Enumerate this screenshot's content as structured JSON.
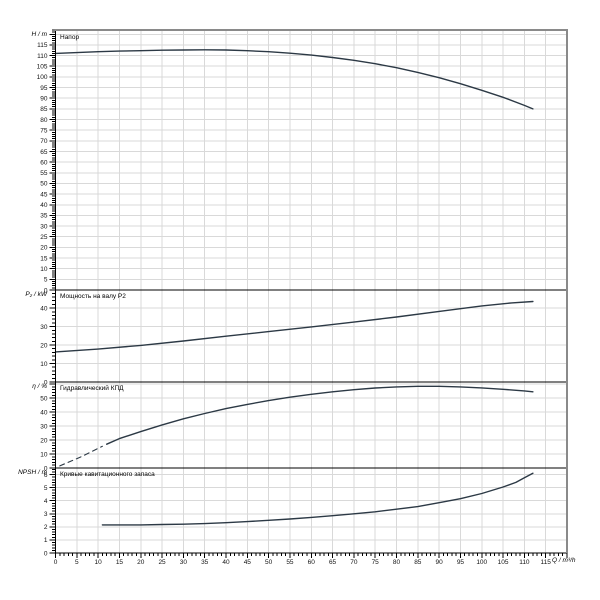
{
  "chart_data": {
    "type": "line",
    "language": "ru",
    "x_axis": {
      "label": "Q / m³/h",
      "min": 0,
      "max": 120,
      "major_tick_step": 5,
      "minor_tick_step": 1,
      "tick_labels": [
        0,
        5,
        10,
        15,
        20,
        25,
        30,
        35,
        40,
        45,
        50,
        55,
        60,
        65,
        70,
        75,
        80,
        85,
        90,
        95,
        100,
        105,
        110,
        115
      ]
    },
    "colors": {
      "curve": "#2c3945",
      "grid": "#d9d9d9",
      "frame": "#8a8a8a",
      "axis": "#000000",
      "background": "#ffffff"
    },
    "panels": [
      {
        "name": "head",
        "unit_label": "H / m",
        "header": "Напор",
        "y_min": 0,
        "y_max": 122,
        "label_step": 5,
        "minor_step": 1,
        "tick_labels": [
          0,
          5,
          10,
          15,
          20,
          25,
          30,
          35,
          40,
          45,
          50,
          55,
          60,
          65,
          70,
          75,
          80,
          85,
          90,
          95,
          100,
          105,
          110,
          115
        ],
        "series": [
          {
            "name": "head-curve",
            "style": "solid",
            "points": [
              [
                0,
                111
              ],
              [
                5,
                111.4
              ],
              [
                10,
                111.8
              ],
              [
                15,
                112.1
              ],
              [
                20,
                112.3
              ],
              [
                25,
                112.5
              ],
              [
                30,
                112.6
              ],
              [
                35,
                112.7
              ],
              [
                40,
                112.6
              ],
              [
                45,
                112.3
              ],
              [
                50,
                111.8
              ],
              [
                55,
                111.1
              ],
              [
                60,
                110.2
              ],
              [
                65,
                109.1
              ],
              [
                70,
                107.8
              ],
              [
                75,
                106.2
              ],
              [
                80,
                104.3
              ],
              [
                85,
                102.1
              ],
              [
                90,
                99.6
              ],
              [
                95,
                96.8
              ],
              [
                100,
                93.7
              ],
              [
                105,
                90.4
              ],
              [
                110,
                86.6
              ],
              [
                112,
                85
              ]
            ]
          }
        ]
      },
      {
        "name": "shaft-power",
        "unit_label": "P₂ / kW",
        "header": "Мощность на валу P2",
        "y_min": 0,
        "y_max": 49.8,
        "label_step": 10,
        "minor_step": 2,
        "tick_labels": [
          0,
          10,
          20,
          30,
          40
        ],
        "series": [
          {
            "name": "power-curve",
            "style": "solid",
            "points": [
              [
                0,
                16.3
              ],
              [
                10,
                17.8
              ],
              [
                20,
                19.8
              ],
              [
                30,
                22.2
              ],
              [
                40,
                24.8
              ],
              [
                50,
                27.3
              ],
              [
                60,
                29.8
              ],
              [
                70,
                32.4
              ],
              [
                80,
                35.2
              ],
              [
                90,
                38.2
              ],
              [
                100,
                41.2
              ],
              [
                107,
                42.8
              ],
              [
                112,
                43.6
              ]
            ]
          }
        ]
      },
      {
        "name": "efficiency",
        "unit_label": "η / %",
        "header": "Гидравлический КПД",
        "y_min": 0,
        "y_max": 61.5,
        "label_step": 10,
        "minor_step": 2,
        "tick_labels": [
          0,
          10,
          20,
          30,
          40,
          50
        ],
        "series": [
          {
            "name": "efficiency-curve-dashed",
            "style": "dashed",
            "points": [
              [
                1,
                1.5
              ],
              [
                6,
                8
              ],
              [
                11,
                15.5
              ]
            ]
          },
          {
            "name": "efficiency-curve",
            "style": "solid",
            "points": [
              [
                12,
                17
              ],
              [
                15,
                21
              ],
              [
                20,
                26
              ],
              [
                25,
                30.8
              ],
              [
                30,
                35.2
              ],
              [
                35,
                39
              ],
              [
                40,
                42.5
              ],
              [
                45,
                45.5
              ],
              [
                50,
                48.2
              ],
              [
                55,
                50.6
              ],
              [
                60,
                52.7
              ],
              [
                65,
                54.5
              ],
              [
                70,
                56
              ],
              [
                75,
                57.2
              ],
              [
                80,
                58
              ],
              [
                85,
                58.4
              ],
              [
                90,
                58.4
              ],
              [
                95,
                58
              ],
              [
                100,
                57.3
              ],
              [
                105,
                56.3
              ],
              [
                110,
                55.1
              ],
              [
                112,
                54.5
              ]
            ]
          }
        ]
      },
      {
        "name": "npsh",
        "unit_label": "NPSH / m",
        "header": "Кривые кавитационного запаса",
        "y_min": 0,
        "y_max": 6.5,
        "label_step": 1,
        "minor_step": 0.2,
        "tick_labels": [
          0,
          1,
          2,
          3,
          4,
          5,
          6
        ],
        "series": [
          {
            "name": "npsh-curve",
            "style": "solid",
            "points": [
              [
                11,
                2.15
              ],
              [
                15,
                2.15
              ],
              [
                20,
                2.15
              ],
              [
                25,
                2.18
              ],
              [
                30,
                2.2
              ],
              [
                35,
                2.25
              ],
              [
                40,
                2.32
              ],
              [
                45,
                2.4
              ],
              [
                50,
                2.5
              ],
              [
                55,
                2.6
              ],
              [
                60,
                2.72
              ],
              [
                65,
                2.85
              ],
              [
                70,
                3
              ],
              [
                75,
                3.15
              ],
              [
                80,
                3.35
              ],
              [
                85,
                3.55
              ],
              [
                90,
                3.85
              ],
              [
                95,
                4.15
              ],
              [
                100,
                4.55
              ],
              [
                105,
                5.05
              ],
              [
                108,
                5.4
              ],
              [
                110,
                5.75
              ],
              [
                112,
                6.1
              ]
            ]
          }
        ]
      }
    ]
  }
}
